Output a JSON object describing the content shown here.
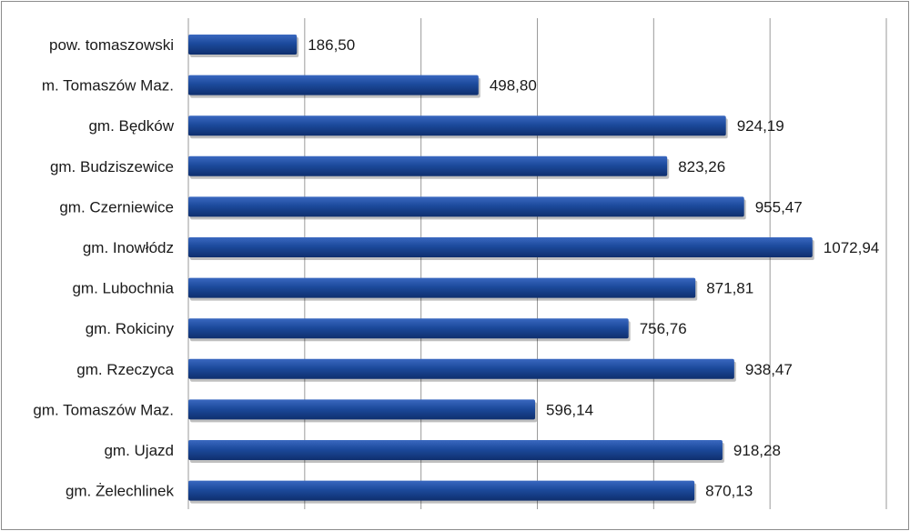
{
  "chart_data": {
    "type": "bar",
    "orientation": "horizontal",
    "title": "",
    "xlabel": "",
    "ylabel": "",
    "categories": [
      "pow. tomaszowski",
      "m. Tomaszów Maz.",
      "gm. Będków",
      "gm. Budziszewice",
      "gm. Czerniewice",
      "gm. Inowłódz",
      "gm. Lubochnia",
      "gm. Rokiciny",
      "gm. Rzeczyca",
      "gm. Tomaszów Maz.",
      "gm. Ujazd",
      "gm. Żelechlinek"
    ],
    "values": [
      186.5,
      498.8,
      924.19,
      823.26,
      955.47,
      1072.94,
      871.81,
      756.76,
      938.47,
      596.14,
      918.28,
      870.13
    ],
    "value_labels": [
      "186,50",
      "498,80",
      "924,19",
      "823,26",
      "955,47",
      "1072,94",
      "871,81",
      "756,76",
      "938,47",
      "596,14",
      "918,28",
      "870,13"
    ],
    "xlim": [
      0,
      1200
    ],
    "grid": true,
    "bar_color": "#1c4a9c"
  }
}
